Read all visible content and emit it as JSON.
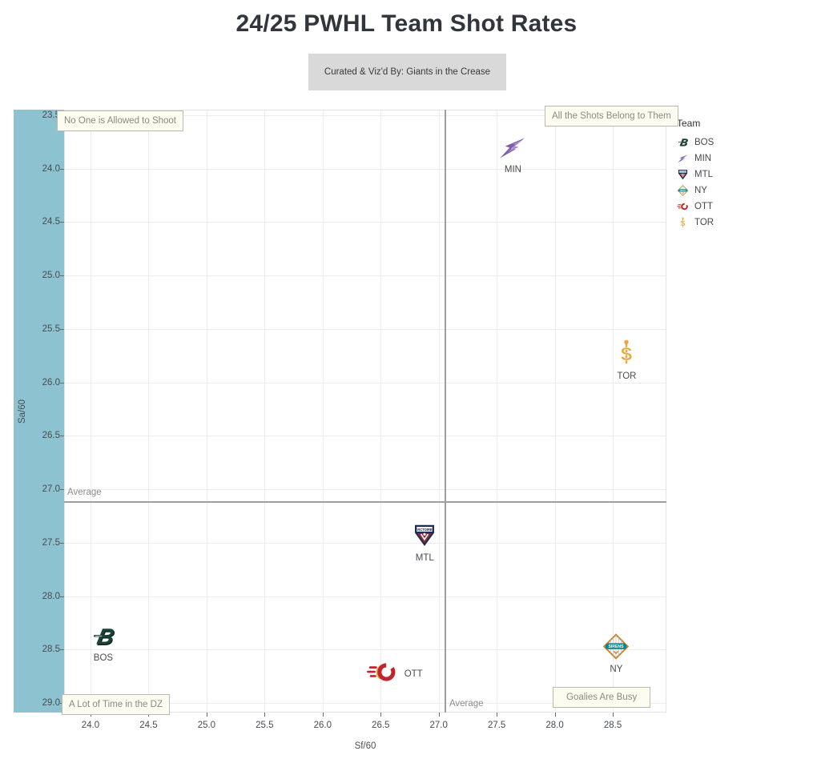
{
  "page": {
    "title": "24/25 PWHL Team Shot Rates",
    "subtitle": "Curated & Viz'd By: Giants in the Crease"
  },
  "chart_data": {
    "type": "scatter",
    "title": "24/25 PWHL Team Shot Rates",
    "subtitle": "Curated & Viz'd By: Giants in the Crease",
    "xlabel": "Sf/60",
    "ylabel": "Sa/60",
    "x_ticks": [
      "24.0",
      "24.5",
      "25.0",
      "25.5",
      "26.0",
      "26.5",
      "27.0",
      "27.5",
      "28.0",
      "28.5"
    ],
    "y_ticks": [
      "23.5",
      "24.0",
      "24.5",
      "25.0",
      "25.5",
      "26.0",
      "26.5",
      "27.0",
      "27.5",
      "28.0",
      "28.5",
      "29.0"
    ],
    "xlim": [
      23.77,
      28.96
    ],
    "ylim": [
      23.45,
      29.09
    ],
    "y_axis_reversed": true,
    "grid": true,
    "points": [
      {
        "team": "BOS",
        "x": 24.11,
        "y": 28.4,
        "label_pos": "below"
      },
      {
        "team": "MIN",
        "x": 27.64,
        "y": 23.82,
        "label_pos": "below"
      },
      {
        "team": "MTL",
        "x": 26.88,
        "y": 27.45,
        "label_pos": "below"
      },
      {
        "team": "NY",
        "x": 28.53,
        "y": 28.49,
        "label_pos": "below"
      },
      {
        "team": "OTT",
        "x": 26.51,
        "y": 28.73,
        "label_pos": "right"
      },
      {
        "team": "TOR",
        "x": 28.62,
        "y": 25.74,
        "label_pos": "below"
      }
    ],
    "reference_lines": {
      "vertical": {
        "x": 27.05,
        "label": "Average"
      },
      "horizontal": {
        "y": 27.11,
        "label": "Average"
      }
    },
    "annotations": [
      {
        "corner": "top-left",
        "text": "No One is Allowed to Shoot"
      },
      {
        "corner": "top-right",
        "text": "All the Shots Belong to Them"
      },
      {
        "corner": "bottom-left",
        "text": "A Lot of Time in the DZ"
      },
      {
        "corner": "bottom-right",
        "text": "Goalies Are Busy"
      }
    ],
    "legend": {
      "title": "Team",
      "entries": [
        "BOS",
        "MIN",
        "MTL",
        "NY",
        "OTT",
        "TOR"
      ]
    }
  },
  "colors": {
    "band": "#8dc2d1",
    "subtitle_bg": "#d9d9d9",
    "grid": "#ececec",
    "average_line": "#9e9e9e",
    "annotation_bg": "#fdfcf1",
    "annotation_border": "#b9b9ad",
    "teams": {
      "BOS": "#1c4339",
      "MIN": "#7e5fae",
      "MTL": "#8f2b3c",
      "NY": "#0e8391",
      "OTT": "#c0242c",
      "TOR": "#e7a93c"
    }
  }
}
